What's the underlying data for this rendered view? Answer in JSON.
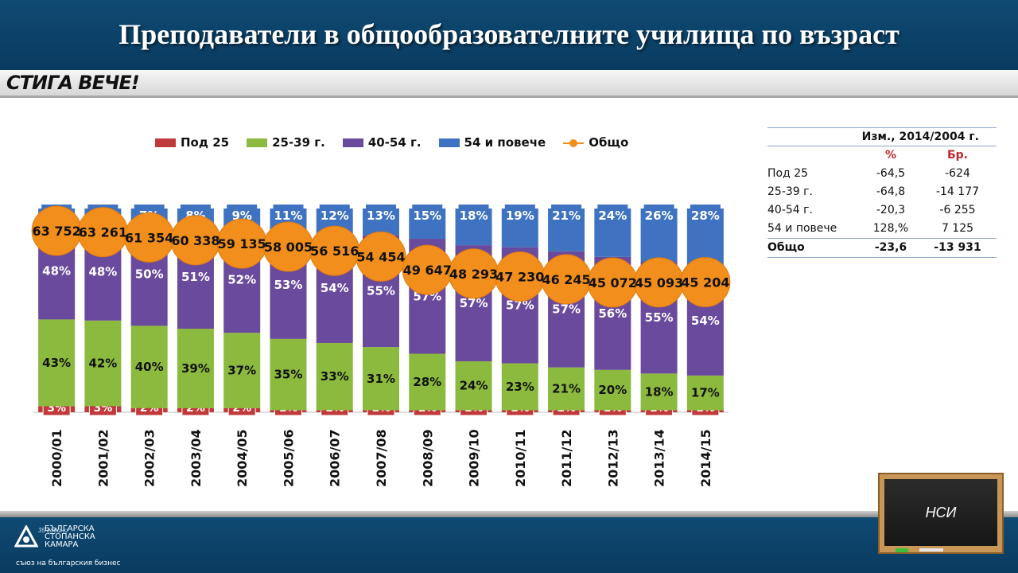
{
  "title": "Преподаватели в общообразователните училища по възраст",
  "brand_top": "СТИГА ВЕЧЕ!",
  "brand_bottom": {
    "line1": "БЪЛГАРСКА",
    "line2": "СТОПАНСКА",
    "line3": "КАМАРА",
    "sub": "съюз на българския бизнес",
    "years": "35 години"
  },
  "board_label": "НСИ",
  "colors": {
    "under25": "#c0393b",
    "g25_39": "#8cba3e",
    "g40_54": "#6a4a9c",
    "g54plus": "#3f73c1",
    "total": "#f28e1c"
  },
  "chart_data": {
    "type": "bar",
    "stacked": true,
    "normalized_percent": true,
    "categories": [
      "2000/01",
      "2001/02",
      "2002/03",
      "2003/04",
      "2004/05",
      "2005/06",
      "2006/07",
      "2007/08",
      "2008/09",
      "2009/10",
      "2010/11",
      "2011/12",
      "2012/13",
      "2013/14",
      "2014/15"
    ],
    "series": [
      {
        "name": "Под 25",
        "values": [
          3,
          3,
          2,
          2,
          2,
          1,
          1,
          1,
          1,
          1,
          1,
          1,
          1,
          1,
          1
        ]
      },
      {
        "name": "25-39 г.",
        "values": [
          43,
          42,
          40,
          39,
          37,
          35,
          33,
          31,
          28,
          24,
          23,
          21,
          20,
          18,
          17
        ]
      },
      {
        "name": "40-54 г.",
        "values": [
          48,
          48,
          50,
          51,
          52,
          53,
          54,
          55,
          57,
          57,
          57,
          57,
          56,
          55,
          54
        ]
      },
      {
        "name": "54 и повече",
        "values": [
          7,
          7,
          7,
          8,
          9,
          11,
          12,
          13,
          15,
          18,
          19,
          21,
          24,
          26,
          28
        ]
      }
    ],
    "line_series": {
      "name": "Общо",
      "values": [
        63752,
        63261,
        61354,
        60338,
        59135,
        58005,
        56516,
        54454,
        49647,
        48293,
        47230,
        46245,
        45072,
        45093,
        45204
      ],
      "labels": [
        "63 752",
        "63 261",
        "61 354",
        "60 338",
        "59 135",
        "58 005",
        "56 516",
        "54 454",
        "49 647",
        "48 293",
        "47 230",
        "46 245",
        "45 072",
        "45 093",
        "45 204"
      ]
    },
    "legend": "top",
    "grid": false
  },
  "table": {
    "header": "Изм., 2014/2004 г.",
    "sub_pct": "%",
    "sub_num": "Бр.",
    "rows": [
      {
        "label": "Под 25",
        "pct": "-64,5",
        "num": "-624"
      },
      {
        "label": "25-39 г.",
        "pct": "-64,8",
        "num": "-14 177"
      },
      {
        "label": "40-54 г.",
        "pct": "-20,3",
        "num": "-6 255"
      },
      {
        "label": "54 и повече",
        "pct": "128,%",
        "num": "7 125"
      }
    ],
    "total": {
      "label": "Общо",
      "pct": "-23,6",
      "num": "-13 931"
    }
  }
}
